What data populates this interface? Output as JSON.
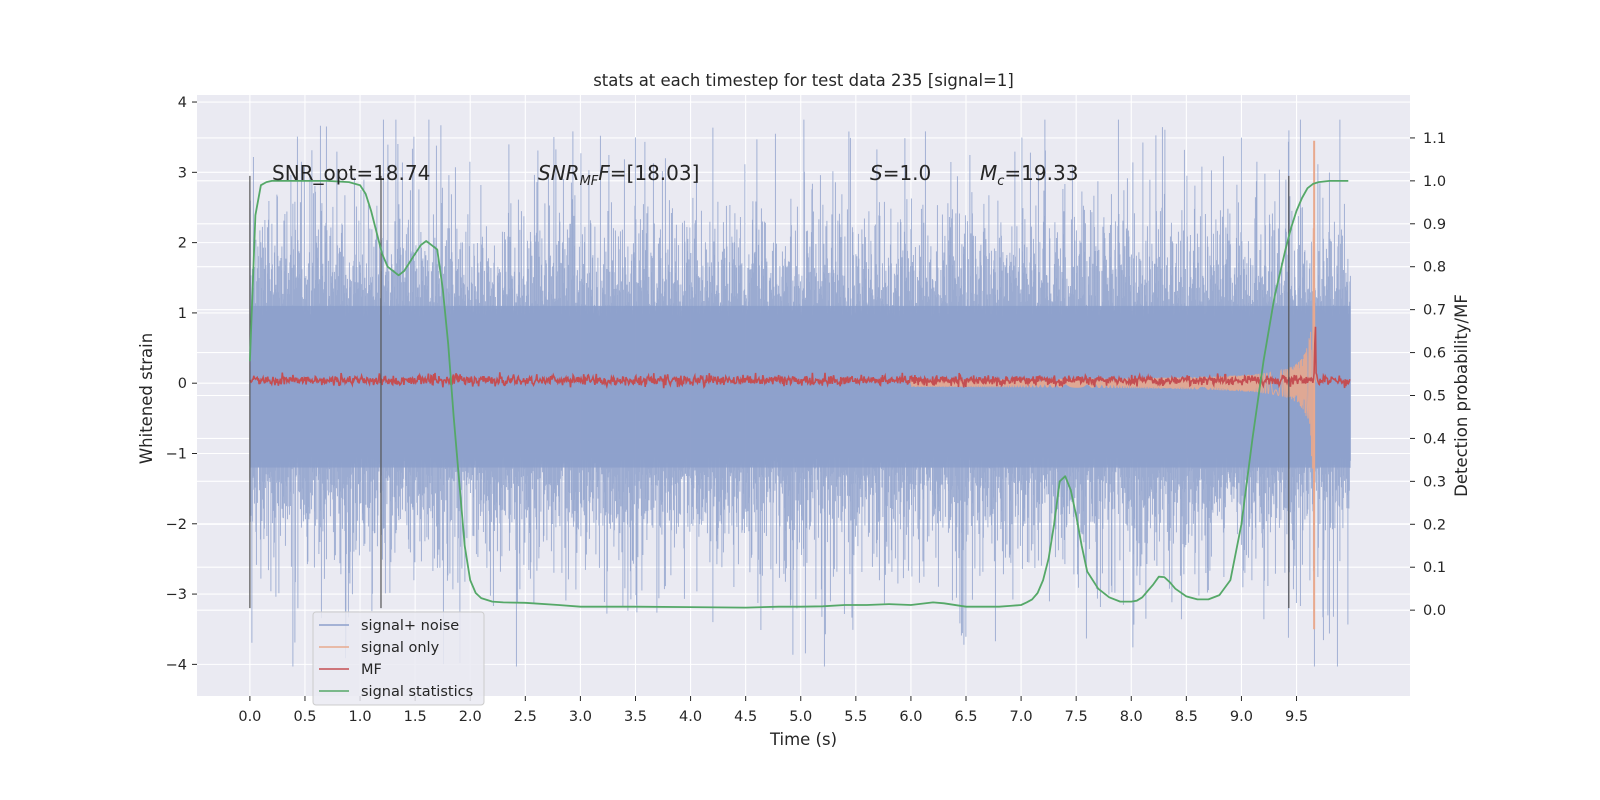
{
  "chart_data": {
    "type": "line",
    "title": "stats at each timestep for test data 235 [signal=1]",
    "xlabel": "Time (s)",
    "ylabel": "Whitened strain",
    "y2label": "Detection probability/MF",
    "xlim": [
      -0.48,
      10.53
    ],
    "ylim": [
      -4.45,
      4.1
    ],
    "y2lim": [
      -0.2,
      1.2
    ],
    "xticks": [
      "0.0",
      "0.5",
      "1.0",
      "1.5",
      "2.0",
      "2.5",
      "3.0",
      "3.5",
      "4.0",
      "4.5",
      "5.0",
      "5.5",
      "6.0",
      "6.5",
      "7.0",
      "7.5",
      "8.0",
      "8.5",
      "9.0",
      "9.5"
    ],
    "yticks": [
      "4",
      "3",
      "2",
      "1",
      "0",
      "−1",
      "−2",
      "−3",
      "−4"
    ],
    "y2ticks": [
      "0.0",
      "0.1",
      "0.2",
      "0.3",
      "0.4",
      "0.5",
      "0.6",
      "0.7",
      "0.8",
      "0.9",
      "1.0",
      "1.1"
    ],
    "grid": true,
    "legend_position": "lower-left",
    "annotations": {
      "snr_opt": "SNR_opt=18.74",
      "snr_mf_base": "SNR",
      "snr_mf_sub": "MF",
      "snr_mf_mid": "F",
      "snr_mf_value": "=[18.03]",
      "s_italic": "S",
      "s_value": "=1.0",
      "mc_italic": "M",
      "mc_sub": "c",
      "mc_value": "=19.33"
    },
    "vertical_lines": {
      "x": [
        0.0,
        1.19,
        9.43
      ],
      "y_range": [
        -3.2,
        2.95
      ]
    },
    "series": [
      {
        "name": "signal+ noise",
        "color": "#8da0cb",
        "kind": "noise",
        "x_range": [
          0.0,
          9.99
        ],
        "band_core": [
          -1.2,
          1.1
        ],
        "envelope_max": 3.75,
        "envelope_min": -4.03
      },
      {
        "name": "signal only",
        "color": "#e8a98e",
        "kind": "chirp",
        "merger_time": 9.66,
        "peak_max": 3.45,
        "peak_min": -3.5
      },
      {
        "name": "MF",
        "color": "#c44e52",
        "kind": "mf",
        "axis": "y2",
        "baseline": 0.535,
        "merger_time": 9.67,
        "peak": 0.69
      },
      {
        "name": "signal statistics",
        "color": "#55a868",
        "axis": "y2",
        "x": [
          0.0,
          0.05,
          0.1,
          0.15,
          0.2,
          0.3,
          0.5,
          0.7,
          0.9,
          1.0,
          1.05,
          1.1,
          1.15,
          1.2,
          1.25,
          1.3,
          1.35,
          1.4,
          1.45,
          1.5,
          1.55,
          1.6,
          1.65,
          1.7,
          1.75,
          1.8,
          1.85,
          1.9,
          1.95,
          2.0,
          2.05,
          2.1,
          2.2,
          2.3,
          2.5,
          2.8,
          3.0,
          3.5,
          4.0,
          4.5,
          4.8,
          5.0,
          5.2,
          5.4,
          5.6,
          5.8,
          6.0,
          6.2,
          6.3,
          6.5,
          6.8,
          6.9,
          7.0,
          7.05,
          7.1,
          7.15,
          7.2,
          7.25,
          7.3,
          7.35,
          7.4,
          7.45,
          7.5,
          7.55,
          7.6,
          7.7,
          7.8,
          7.9,
          8.0,
          8.05,
          8.1,
          8.15,
          8.2,
          8.25,
          8.3,
          8.35,
          8.4,
          8.5,
          8.6,
          8.7,
          8.8,
          8.9,
          9.0,
          9.1,
          9.2,
          9.3,
          9.4,
          9.45,
          9.5,
          9.55,
          9.6,
          9.65,
          9.7,
          9.8,
          9.9,
          9.97
        ],
        "y": [
          0.58,
          0.92,
          0.99,
          0.997,
          1.0,
          1.0,
          1.0,
          1.0,
          0.997,
          0.99,
          0.97,
          0.93,
          0.88,
          0.83,
          0.8,
          0.79,
          0.78,
          0.79,
          0.81,
          0.83,
          0.85,
          0.86,
          0.85,
          0.84,
          0.75,
          0.62,
          0.45,
          0.3,
          0.15,
          0.07,
          0.04,
          0.028,
          0.02,
          0.018,
          0.017,
          0.012,
          0.008,
          0.008,
          0.007,
          0.006,
          0.008,
          0.008,
          0.009,
          0.012,
          0.012,
          0.014,
          0.012,
          0.018,
          0.016,
          0.008,
          0.008,
          0.01,
          0.012,
          0.018,
          0.025,
          0.04,
          0.07,
          0.12,
          0.2,
          0.3,
          0.312,
          0.28,
          0.22,
          0.15,
          0.09,
          0.05,
          0.03,
          0.02,
          0.02,
          0.022,
          0.03,
          0.045,
          0.06,
          0.078,
          0.077,
          0.065,
          0.05,
          0.032,
          0.025,
          0.025,
          0.035,
          0.07,
          0.2,
          0.4,
          0.58,
          0.73,
          0.84,
          0.89,
          0.93,
          0.96,
          0.983,
          0.993,
          0.997,
          1.0,
          1.0,
          1.0
        ]
      }
    ]
  }
}
